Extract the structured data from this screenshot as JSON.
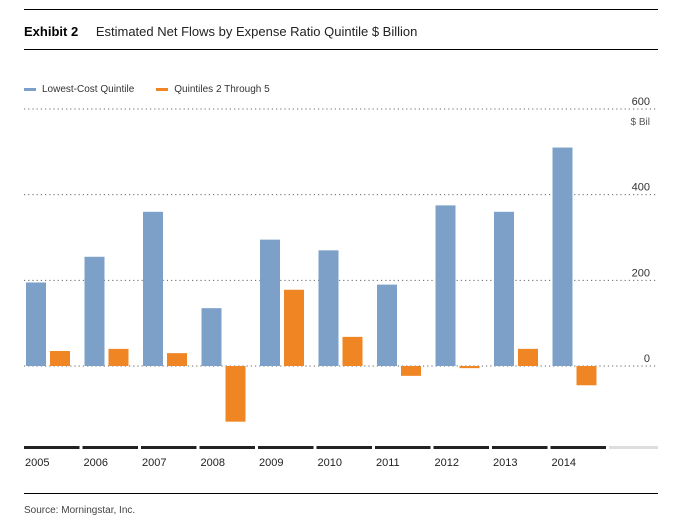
{
  "header": {
    "exhibit_label": "Exhibit 2",
    "title": "Estimated Net Flows by Expense Ratio Quintile $ Billion"
  },
  "footer": {
    "source": "Source: Morningstar, Inc."
  },
  "colors": {
    "series_1": "#7ca0c8",
    "series_2": "#f08523",
    "grid": "#666666",
    "axis_bar": "#222222"
  },
  "chart_data": {
    "type": "bar",
    "categories": [
      "2005",
      "2006",
      "2007",
      "2008",
      "2009",
      "2010",
      "2011",
      "2012",
      "2013",
      "2014"
    ],
    "series": [
      {
        "name": "Lowest-Cost Quintile",
        "values": [
          195,
          255,
          360,
          135,
          295,
          270,
          190,
          375,
          360,
          510
        ]
      },
      {
        "name": "Quintiles 2 Through 5",
        "values": [
          35,
          40,
          30,
          -130,
          178,
          68,
          -23,
          -5,
          40,
          -45
        ]
      }
    ],
    "ylabel": "$ Bil",
    "ylim": [
      -195,
      600
    ],
    "yticks": [
      0,
      200,
      400,
      600
    ],
    "legend_position": "top-left",
    "grid": true
  }
}
